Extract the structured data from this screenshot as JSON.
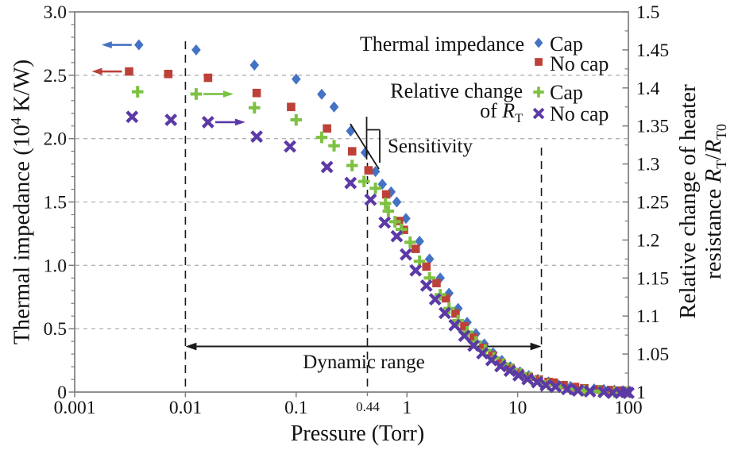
{
  "figure": {
    "x_title": "Pressure (Torr)",
    "left_title": {
      "prefix": "Thermal impedance (10",
      "exp": "4",
      "suffix": " K/W)"
    },
    "right_title": {
      "line1": "Relative change of heater",
      "line2_prefix": "resistance ",
      "r1": "R",
      "r1_sub": "T",
      "slash": "/",
      "r2": "R",
      "r2_sub": "T0"
    }
  },
  "legend": {
    "group1": {
      "title": "Thermal impedance",
      "cap_label": "Cap",
      "nocap_label": "No cap"
    },
    "group2": {
      "title_line1": "Relative change",
      "title_line2_prefix": "of ",
      "symbol": "R",
      "symbol_sub": "T",
      "cap_label": "Cap",
      "nocap_label": "No cap"
    }
  },
  "annotations_text": {
    "sensitivity": "Sensitivity",
    "dynamic_range": "Dynamic range",
    "special_tick_label": "0.44"
  },
  "colors": {
    "blue": "#4472c4",
    "red": "#bd4138",
    "green": "#7dc142",
    "purple": "#5c3aa6",
    "frame": "#7d7d7d",
    "grid": "#b3b3b3",
    "annotation": "#1a1a1a"
  },
  "chart_data": {
    "type": "scatter",
    "x_axis": {
      "label": "Pressure (Torr)",
      "scale": "log",
      "range": [
        0.001,
        100
      ],
      "tick_values": [
        0.001,
        0.01,
        0.1,
        1,
        10,
        100
      ],
      "tick_labels": [
        "0.001",
        "0.01",
        "0.1",
        "1",
        "10",
        "100"
      ],
      "special_tick": {
        "label": "0.44",
        "value": 0.44
      }
    },
    "y_left": {
      "label": "Thermal impedance (10^4 K/W)",
      "range": [
        0,
        3.0
      ],
      "tick_values": [
        3.0,
        2.5,
        2.0,
        1.5,
        1.0,
        0.5,
        0
      ],
      "tick_labels": [
        "3.0",
        "2.5",
        "2.0",
        "1.5",
        "1.0",
        "0.5",
        "0"
      ],
      "minor_step": 0.1,
      "gridline_values": [
        2.5,
        2.0,
        1.5,
        1.0,
        0.5
      ],
      "grid_dashed": true
    },
    "y_right": {
      "label": "Relative change of heater resistance R_T/R_T0",
      "range": [
        1.0,
        1.5
      ],
      "tick_values": [
        1.5,
        1.45,
        1.4,
        1.35,
        1.3,
        1.25,
        1.2,
        1.15,
        1.1,
        1.05,
        1.0
      ],
      "tick_labels": [
        "1.5",
        "1.45",
        "1.4",
        "1.35",
        "1.3",
        "1.25",
        "1.2",
        "1.15",
        "1.1",
        "1.05",
        "1"
      ],
      "minor_step": 0.025
    },
    "series": [
      {
        "name": "Cap",
        "group": "Thermal impedance",
        "axis": "left",
        "marker": "diamond",
        "color": "#4472c4",
        "axis_arrow": {
          "anchor_index": 0,
          "direction": "left"
        },
        "points": [
          [
            0.0038,
            2.74
          ],
          [
            0.0125,
            2.7
          ],
          [
            0.042,
            2.58
          ],
          [
            0.1,
            2.47
          ],
          [
            0.17,
            2.35
          ],
          [
            0.22,
            2.25
          ],
          [
            0.31,
            2.06
          ],
          [
            0.42,
            1.89
          ],
          [
            0.52,
            1.74
          ],
          [
            0.6,
            1.64
          ],
          [
            0.72,
            1.58
          ],
          [
            0.81,
            1.5
          ],
          [
            0.98,
            1.37
          ],
          [
            1.3,
            1.19
          ],
          [
            1.6,
            1.05
          ],
          [
            2.0,
            0.9
          ],
          [
            2.4,
            0.78
          ],
          [
            2.9,
            0.66
          ],
          [
            3.5,
            0.55
          ],
          [
            4.2,
            0.46
          ],
          [
            5.0,
            0.38
          ],
          [
            6.0,
            0.31
          ],
          [
            7.2,
            0.25
          ],
          [
            8.6,
            0.2
          ],
          [
            10.5,
            0.16
          ],
          [
            12.6,
            0.13
          ],
          [
            15.2,
            0.1
          ],
          [
            19,
            0.08
          ],
          [
            23,
            0.06
          ],
          [
            30,
            0.045
          ],
          [
            49,
            0.025
          ],
          [
            60,
            0.02
          ],
          [
            75,
            0.015
          ],
          [
            90,
            0.01
          ]
        ]
      },
      {
        "name": "No cap",
        "group": "Thermal impedance",
        "axis": "left",
        "marker": "square",
        "color": "#bd4138",
        "axis_arrow": {
          "anchor_index": 0,
          "direction": "left"
        },
        "points": [
          [
            0.0031,
            2.53
          ],
          [
            0.007,
            2.51
          ],
          [
            0.016,
            2.48
          ],
          [
            0.044,
            2.36
          ],
          [
            0.09,
            2.25
          ],
          [
            0.19,
            2.08
          ],
          [
            0.32,
            1.9
          ],
          [
            0.45,
            1.75
          ],
          [
            0.65,
            1.56
          ],
          [
            0.85,
            1.35
          ],
          [
            0.94,
            1.28
          ],
          [
            1.2,
            1.13
          ],
          [
            1.5,
            0.99
          ],
          [
            1.85,
            0.86
          ],
          [
            2.25,
            0.74
          ],
          [
            2.75,
            0.62
          ],
          [
            3.3,
            0.52
          ],
          [
            4.0,
            0.43
          ],
          [
            4.9,
            0.35
          ],
          [
            5.9,
            0.29
          ],
          [
            7.1,
            0.23
          ],
          [
            8.6,
            0.19
          ],
          [
            10.4,
            0.15
          ],
          [
            12.6,
            0.12
          ],
          [
            15.5,
            0.1
          ],
          [
            19,
            0.08
          ],
          [
            21,
            0.075
          ],
          [
            26,
            0.055
          ],
          [
            33,
            0.04
          ],
          [
            40,
            0.03
          ],
          [
            55,
            0.022
          ],
          [
            70,
            0.016
          ],
          [
            85,
            0.012
          ],
          [
            95,
            0.01
          ]
        ]
      },
      {
        "name": "Cap",
        "group": "Relative change of R_T",
        "axis": "right",
        "marker": "plus",
        "color": "#7dc142",
        "axis_arrow": {
          "anchor_index": 1,
          "direction": "right"
        },
        "points": [
          [
            0.0037,
            1.395
          ],
          [
            0.0125,
            1.392
          ],
          [
            0.042,
            1.374
          ],
          [
            0.1,
            1.358
          ],
          [
            0.17,
            1.335
          ],
          [
            0.22,
            1.324
          ],
          [
            0.32,
            1.298
          ],
          [
            0.41,
            1.277
          ],
          [
            0.52,
            1.268
          ],
          [
            0.64,
            1.248
          ],
          [
            0.68,
            1.238
          ],
          [
            0.78,
            1.224
          ],
          [
            0.89,
            1.214
          ],
          [
            1.07,
            1.197
          ],
          [
            1.3,
            1.172
          ],
          [
            1.6,
            1.15
          ],
          [
            2.0,
            1.128
          ],
          [
            2.4,
            1.11
          ],
          [
            2.9,
            1.094
          ],
          [
            3.5,
            1.079
          ],
          [
            4.2,
            1.066
          ],
          [
            5.1,
            1.055
          ],
          [
            6.1,
            1.045
          ],
          [
            7.4,
            1.037
          ],
          [
            8.9,
            1.03
          ],
          [
            10.7,
            1.024
          ],
          [
            13,
            1.019
          ],
          [
            16,
            1.014
          ],
          [
            19,
            1.01
          ],
          [
            24,
            1.007
          ],
          [
            30,
            1.004
          ],
          [
            40,
            1.002
          ],
          [
            55,
            1.001
          ],
          [
            75,
            1.0
          ],
          [
            95,
            1.0
          ]
        ]
      },
      {
        "name": "No cap",
        "group": "Relative change of R_T",
        "axis": "right",
        "marker": "x",
        "color": "#5c3aa6",
        "axis_arrow": {
          "anchor_index": 2,
          "direction": "right"
        },
        "points": [
          [
            0.0033,
            1.362
          ],
          [
            0.0074,
            1.358
          ],
          [
            0.016,
            1.355
          ],
          [
            0.044,
            1.336
          ],
          [
            0.088,
            1.323
          ],
          [
            0.19,
            1.296
          ],
          [
            0.31,
            1.275
          ],
          [
            0.47,
            1.253
          ],
          [
            0.63,
            1.223
          ],
          [
            0.81,
            1.205
          ],
          [
            0.98,
            1.181
          ],
          [
            1.2,
            1.16
          ],
          [
            1.5,
            1.14
          ],
          [
            1.8,
            1.122
          ],
          [
            2.2,
            1.104
          ],
          [
            2.7,
            1.088
          ],
          [
            3.3,
            1.074
          ],
          [
            4.0,
            1.061
          ],
          [
            4.8,
            1.051
          ],
          [
            5.8,
            1.042
          ],
          [
            7.0,
            1.034
          ],
          [
            8.5,
            1.028
          ],
          [
            10.2,
            1.022
          ],
          [
            12.3,
            1.017
          ],
          [
            15,
            1.013
          ],
          [
            18,
            1.009
          ],
          [
            22,
            1.007
          ],
          [
            28,
            1.004
          ],
          [
            35,
            1.002
          ],
          [
            45,
            1.001
          ],
          [
            60,
            1.0
          ],
          [
            72,
            0.999
          ],
          [
            85,
            0.999
          ],
          [
            95,
            1.0
          ],
          [
            100,
            0.999
          ]
        ]
      }
    ],
    "annotations": {
      "dashed_vlines": [
        0.01,
        0.44,
        16.4
      ],
      "dynamic_range": {
        "label": "Dynamic range",
        "from": 0.01,
        "to": 16.4,
        "y_left_value": 0.36
      },
      "sensitivity": {
        "label": "Sensitivity",
        "at_pressure": 0.44
      }
    },
    "legend_position": "top-right-inside",
    "grid": "horizontal-dashed"
  }
}
